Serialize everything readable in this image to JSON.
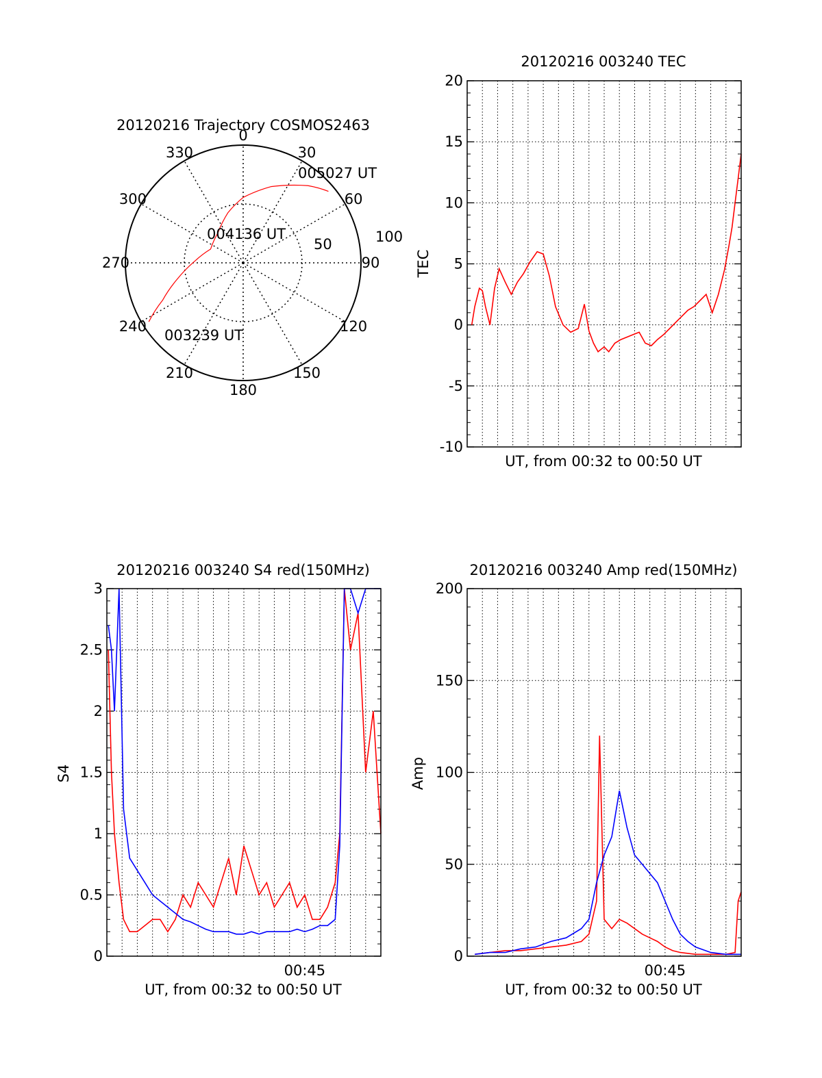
{
  "colors": {
    "red": "#ff0000",
    "blue": "#0000ff",
    "axis": "#000000",
    "grid": "#000000"
  },
  "chart_data": [
    {
      "type": "polar",
      "title": "20120216 Trajectory COSMOS2463",
      "azimuth_labels": [
        "0",
        "30",
        "60",
        "90",
        "120",
        "150",
        "180",
        "210",
        "240",
        "270",
        "300",
        "330"
      ],
      "radial_labels": [
        "50",
        "100"
      ],
      "track": {
        "series_color": "red",
        "points": [
          [
            238,
            5
          ],
          [
            245,
            22
          ],
          [
            256,
            38
          ],
          [
            272,
            53
          ],
          [
            293,
            63
          ],
          [
            320,
            60
          ],
          [
            343,
            50
          ],
          [
            360,
            40
          ],
          [
            20,
            28
          ],
          [
            40,
            13
          ],
          [
            50,
            5
          ]
        ]
      },
      "annotations": [
        {
          "text": "005027 UT",
          "az": 50,
          "el": 5
        },
        {
          "text": "004136 UT",
          "az": 320,
          "el": 60
        },
        {
          "text": "003239 UT",
          "az": 238,
          "el": 5
        }
      ]
    },
    {
      "type": "line",
      "title": "20120216 003240 TEC",
      "xlabel": "UT, from 00:32 to 00:50 UT",
      "ylabel": "TEC",
      "ylim": [
        -10,
        20
      ],
      "yticks": [
        "-10",
        "-5",
        "0",
        "5",
        "10",
        "15",
        "20"
      ],
      "xlim": [
        0,
        18
      ],
      "xtick_labels": [],
      "series": [
        {
          "color": "red",
          "x": [
            0.3,
            0.5,
            0.8,
            1.0,
            1.2,
            1.5,
            1.8,
            2.1,
            2.5,
            2.9,
            3.3,
            3.7,
            4.1,
            4.6,
            5.0,
            5.4,
            5.8,
            6.3,
            6.8,
            7.3,
            7.7,
            8.0,
            8.3,
            8.6,
            8.8,
            9.0,
            9.3,
            9.7,
            10.1,
            10.5,
            10.9,
            11.3,
            11.7,
            12.1,
            12.5,
            12.9,
            13.3,
            13.7,
            14.1,
            14.5,
            14.9,
            15.3,
            15.7,
            16.1,
            16.5,
            16.9,
            17.2,
            17.4,
            17.6,
            17.8,
            18.0
          ],
          "y": [
            0,
            1.5,
            3,
            2.8,
            1.5,
            0,
            3,
            4.6,
            3.5,
            2.5,
            3.5,
            4.2,
            5.1,
            6.0,
            5.8,
            4,
            1.5,
            0,
            -0.6,
            -0.3,
            1.7,
            -0.5,
            -1.5,
            -2.2,
            -2.0,
            -1.8,
            -2.2,
            -1.5,
            -1.2,
            -1.0,
            -0.8,
            -0.6,
            -1.5,
            -1.7,
            -1.2,
            -0.8,
            -0.3,
            0.2,
            0.7,
            1.2,
            1.5,
            2.0,
            2.5,
            1.0,
            2.5,
            4.5,
            6.5,
            8.0,
            10.0,
            12.0,
            14.0
          ]
        }
      ]
    },
    {
      "type": "line",
      "title": "20120216 003240 S4 red(150MHz)",
      "xlabel": "UT, from 00:32 to 00:50 UT",
      "ylabel": "S4",
      "ylim": [
        0,
        3
      ],
      "yticks": [
        "0",
        "0.5",
        "1",
        "1.5",
        "2",
        "2.5",
        "3"
      ],
      "xlim": [
        0,
        18
      ],
      "xtick_labels": [
        {
          "x": 13,
          "label": "00:45"
        }
      ],
      "series": [
        {
          "color": "red",
          "x": [
            0.1,
            0.3,
            0.5,
            0.8,
            1.1,
            1.5,
            2,
            2.5,
            3,
            3.5,
            4,
            4.5,
            5,
            5.5,
            6,
            6.5,
            7,
            7.5,
            8,
            8.5,
            9,
            9.5,
            10,
            10.5,
            11,
            11.5,
            12,
            12.5,
            13,
            13.5,
            14,
            14.5,
            15,
            15.3,
            15.6,
            16,
            16.5,
            17,
            17.5,
            18
          ],
          "y": [
            2.5,
            1.5,
            1.0,
            0.6,
            0.3,
            0.2,
            0.2,
            0.25,
            0.3,
            0.3,
            0.2,
            0.3,
            0.5,
            0.4,
            0.6,
            0.5,
            0.4,
            0.6,
            0.8,
            0.5,
            0.9,
            0.7,
            0.5,
            0.6,
            0.4,
            0.5,
            0.6,
            0.4,
            0.5,
            0.3,
            0.3,
            0.4,
            0.6,
            1.0,
            3.0,
            2.5,
            2.8,
            1.5,
            2.0,
            1.0
          ]
        },
        {
          "color": "blue",
          "x": [
            0.1,
            0.3,
            0.5,
            0.8,
            1.1,
            1.5,
            2,
            2.5,
            3,
            3.5,
            4,
            4.5,
            5,
            5.5,
            6,
            6.5,
            7,
            7.5,
            8,
            8.5,
            9,
            9.5,
            10,
            10.5,
            11,
            11.5,
            12,
            12.5,
            13,
            13.5,
            14,
            14.5,
            15,
            15.3,
            15.6,
            16,
            16.5,
            17,
            17.5,
            18
          ],
          "y": [
            2.7,
            2.5,
            2.0,
            3.0,
            1.2,
            0.8,
            0.7,
            0.6,
            0.5,
            0.45,
            0.4,
            0.35,
            0.3,
            0.28,
            0.25,
            0.22,
            0.2,
            0.2,
            0.2,
            0.18,
            0.18,
            0.2,
            0.18,
            0.2,
            0.2,
            0.2,
            0.2,
            0.22,
            0.2,
            0.22,
            0.25,
            0.25,
            0.3,
            0.9,
            3.0,
            3.0,
            2.8,
            3.0,
            3.0,
            3.0
          ]
        }
      ]
    },
    {
      "type": "line",
      "title": "20120216 003240 Amp red(150MHz)",
      "xlabel": "UT, from 00:32 to 00:50 UT",
      "ylabel": "Amp",
      "ylim": [
        0,
        200
      ],
      "yticks": [
        "0",
        "50",
        "100",
        "150",
        "200"
      ],
      "xlim": [
        0,
        18
      ],
      "xtick_labels": [
        {
          "x": 13,
          "label": "00:45"
        }
      ],
      "series": [
        {
          "color": "red",
          "x": [
            0.5,
            1.5,
            2.5,
            3.5,
            4.5,
            5.5,
            6.5,
            7.5,
            8.0,
            8.5,
            8.7,
            9.0,
            9.5,
            10,
            10.5,
            11,
            11.5,
            12,
            12.5,
            13,
            13.5,
            14,
            15,
            16,
            17,
            17.6,
            17.8,
            18
          ],
          "y": [
            1,
            2,
            3,
            3,
            4,
            5,
            6,
            8,
            12,
            30,
            120,
            20,
            15,
            20,
            18,
            15,
            12,
            10,
            8,
            5,
            3,
            2,
            1,
            1,
            1,
            2,
            30,
            35
          ]
        },
        {
          "color": "blue",
          "x": [
            0.5,
            1.5,
            2.5,
            3.5,
            4.5,
            5.5,
            6.5,
            7.5,
            8.0,
            8.5,
            9.0,
            9.5,
            10.0,
            10.5,
            11,
            11.5,
            12,
            12.5,
            13,
            13.5,
            14,
            14.5,
            15,
            16,
            17,
            17.8,
            18
          ],
          "y": [
            1,
            2,
            2,
            4,
            5,
            8,
            10,
            15,
            20,
            40,
            55,
            65,
            90,
            70,
            55,
            50,
            45,
            40,
            30,
            20,
            12,
            8,
            5,
            2,
            1,
            1,
            1
          ]
        }
      ]
    }
  ]
}
